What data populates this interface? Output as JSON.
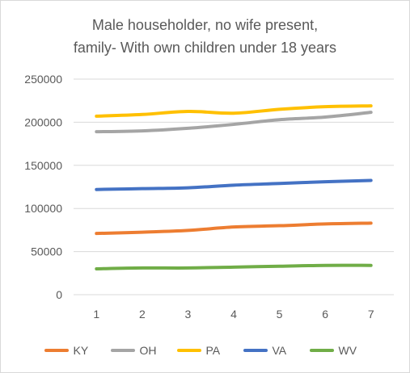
{
  "chart_data": {
    "type": "line",
    "title_lines": [
      "Male householder, no wife present,",
      "family- With own children under 18 years"
    ],
    "xlabel": "",
    "ylabel": "",
    "x": [
      1,
      2,
      3,
      4,
      5,
      6,
      7
    ],
    "x_tick_labels": [
      "1",
      "2",
      "3",
      "4",
      "5",
      "6",
      "7"
    ],
    "ylim": [
      0,
      250000
    ],
    "y_ticks": [
      0,
      50000,
      100000,
      150000,
      200000,
      250000
    ],
    "y_tick_labels": [
      "0",
      "50000",
      "100000",
      "150000",
      "200000",
      "250000"
    ],
    "grid": "horizontal",
    "legend_position": "bottom",
    "series": [
      {
        "name": "KY",
        "color": "#ED7D31",
        "values": [
          71000,
          72500,
          74500,
          78500,
          80000,
          82000,
          83000
        ]
      },
      {
        "name": "OH",
        "color": "#A5A5A5",
        "values": [
          189000,
          190000,
          193000,
          197500,
          203000,
          206000,
          211500
        ]
      },
      {
        "name": "PA",
        "color": "#FFC000",
        "values": [
          207000,
          209000,
          212500,
          210500,
          215000,
          218000,
          219000
        ]
      },
      {
        "name": "VA",
        "color": "#4472C4",
        "values": [
          122000,
          123000,
          124000,
          127000,
          129000,
          131000,
          132500
        ]
      },
      {
        "name": "WV",
        "color": "#70AD47",
        "values": [
          30000,
          31000,
          31000,
          32000,
          33000,
          34000,
          34000
        ]
      }
    ]
  }
}
